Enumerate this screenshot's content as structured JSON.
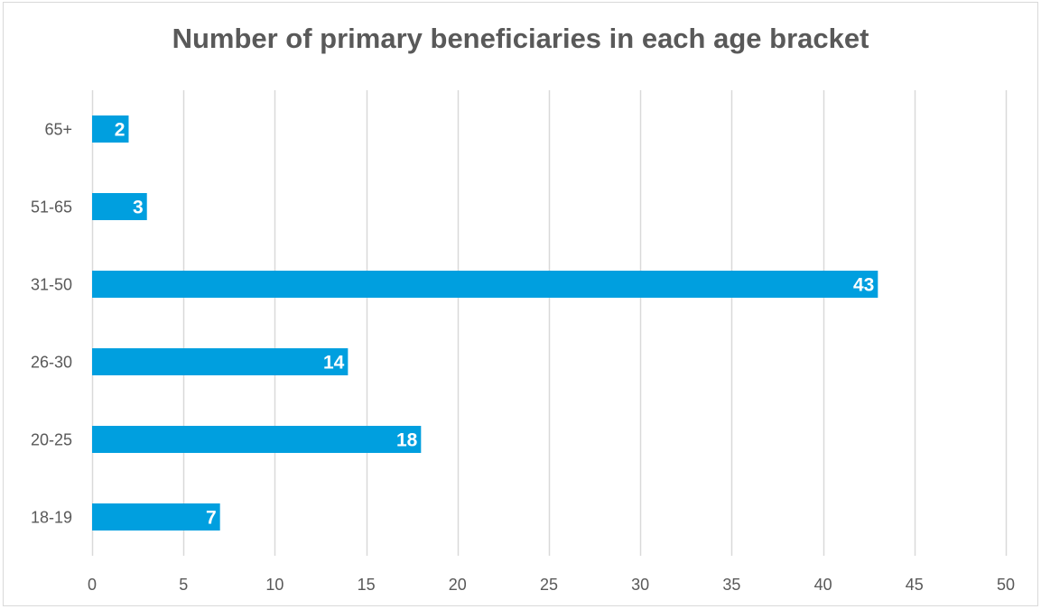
{
  "chart_data": {
    "type": "bar",
    "orientation": "horizontal",
    "title": "Number of primary beneficiaries in each age bracket",
    "categories": [
      "18-19",
      "20-25",
      "26-30",
      "31-50",
      "51-65",
      "65+"
    ],
    "values": [
      7,
      18,
      14,
      43,
      3,
      2
    ],
    "data_labels": [
      "7",
      "18",
      "14",
      "43",
      "3",
      "2"
    ],
    "xlim": [
      0,
      50
    ],
    "xticks": [
      0,
      5,
      10,
      15,
      20,
      25,
      30,
      35,
      40,
      45,
      50
    ],
    "xtick_labels": [
      "0",
      "5",
      "10",
      "15",
      "20",
      "25",
      "30",
      "35",
      "40",
      "45",
      "50"
    ],
    "grid": "vertical",
    "legend": "none",
    "bar_color": "#009fdf",
    "grid_color": "#d9d9d9",
    "text_color": "#595959",
    "label_color": "#ffffff"
  }
}
